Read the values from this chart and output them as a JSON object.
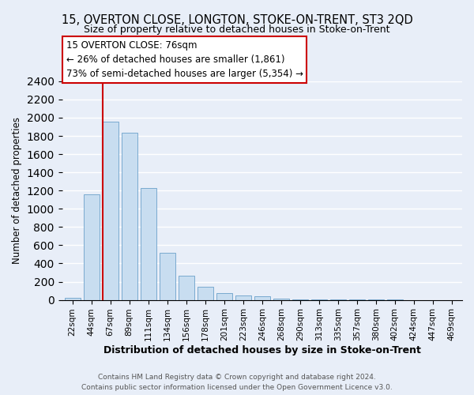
{
  "title": "15, OVERTON CLOSE, LONGTON, STOKE-ON-TRENT, ST3 2QD",
  "subtitle": "Size of property relative to detached houses in Stoke-on-Trent",
  "xlabel": "Distribution of detached houses by size in Stoke-on-Trent",
  "ylabel": "Number of detached properties",
  "bar_labels": [
    "22sqm",
    "44sqm",
    "67sqm",
    "89sqm",
    "111sqm",
    "134sqm",
    "156sqm",
    "178sqm",
    "201sqm",
    "223sqm",
    "246sqm",
    "268sqm",
    "290sqm",
    "313sqm",
    "335sqm",
    "357sqm",
    "380sqm",
    "402sqm",
    "424sqm",
    "447sqm",
    "469sqm"
  ],
  "bar_values": [
    25,
    1155,
    1955,
    1835,
    1225,
    520,
    265,
    140,
    75,
    50,
    40,
    10,
    8,
    5,
    2,
    2,
    1,
    1,
    0,
    0,
    0
  ],
  "bar_color": "#c8ddf0",
  "bar_edge_color": "#7aaacf",
  "property_line_bar_index": 2,
  "property_sqm": 76,
  "ylim": [
    0,
    2400
  ],
  "yticks": [
    0,
    200,
    400,
    600,
    800,
    1000,
    1200,
    1400,
    1600,
    1800,
    2000,
    2200,
    2400
  ],
  "annotation_title": "15 OVERTON CLOSE: 76sqm",
  "annotation_line1": "← 26% of detached houses are smaller (1,861)",
  "annotation_line2": "73% of semi-detached houses are larger (5,354) →",
  "annotation_box_color": "#ffffff",
  "annotation_box_edge": "#cc0000",
  "footer_line1": "Contains HM Land Registry data © Crown copyright and database right 2024.",
  "footer_line2": "Contains public sector information licensed under the Open Government Licence v3.0.",
  "bg_color": "#e8eef8",
  "plot_bg_color": "#e8eef8",
  "grid_color": "#ffffff",
  "property_line_color": "#cc0000"
}
